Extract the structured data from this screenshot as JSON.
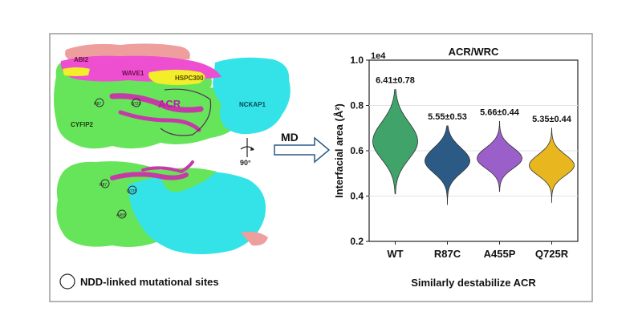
{
  "structure_panel": {
    "labels": {
      "abi2": "ABI2",
      "wave1": "WAVE1",
      "hspc300": "HSPC300",
      "acr": "ACR",
      "cyfip2": "CYFIP2",
      "nckap1": "NCKAP1",
      "r87_top": "R87",
      "q725_top": "Q725",
      "r87_bottom": "R87",
      "q725_bottom": "Q725",
      "a455_bottom": "A455"
    },
    "rotation_label": "90°",
    "legend_label": "NDD-linked mutational sites"
  },
  "md_arrow": {
    "label": "MD"
  },
  "footer_caption": "Similarly destabilize ACR",
  "colors": {
    "cyfip2": "#66e55a",
    "nckap1": "#33e3e8",
    "wave1": "#ee4fd0",
    "abi2": "#ef9e9e",
    "hspc300": "#f2ee2a",
    "acr": "#c63aa8"
  },
  "chart_data": {
    "type": "violin",
    "title": "ACR/WRC",
    "ylabel": "Interfacial area (Å²)",
    "y_scale_label": "1e4",
    "ylim": [
      0.2,
      1.0
    ],
    "yticks": [
      "0.2",
      "0.4",
      "0.6",
      "0.8",
      "1.0"
    ],
    "ytick_values": [
      0.2,
      0.4,
      0.6,
      0.8,
      1.0
    ],
    "grid": "horizontal",
    "categories": [
      "WT",
      "R87C",
      "A455P",
      "Q725R"
    ],
    "series": [
      {
        "category": "WT",
        "mean": 0.641,
        "sd": 0.078,
        "min": 0.41,
        "max": 0.87,
        "label": "6.41±0.78",
        "color": "#3fa36a"
      },
      {
        "category": "R87C",
        "mean": 0.555,
        "sd": 0.053,
        "min": 0.36,
        "max": 0.71,
        "label": "5.55±0.53",
        "color": "#2b5a85"
      },
      {
        "category": "A455P",
        "mean": 0.566,
        "sd": 0.044,
        "min": 0.42,
        "max": 0.73,
        "label": "5.66±0.44",
        "color": "#9b5fc9"
      },
      {
        "category": "Q725R",
        "mean": 0.535,
        "sd": 0.044,
        "min": 0.37,
        "max": 0.7,
        "label": "5.35±0.44",
        "color": "#e8b61f"
      }
    ]
  }
}
